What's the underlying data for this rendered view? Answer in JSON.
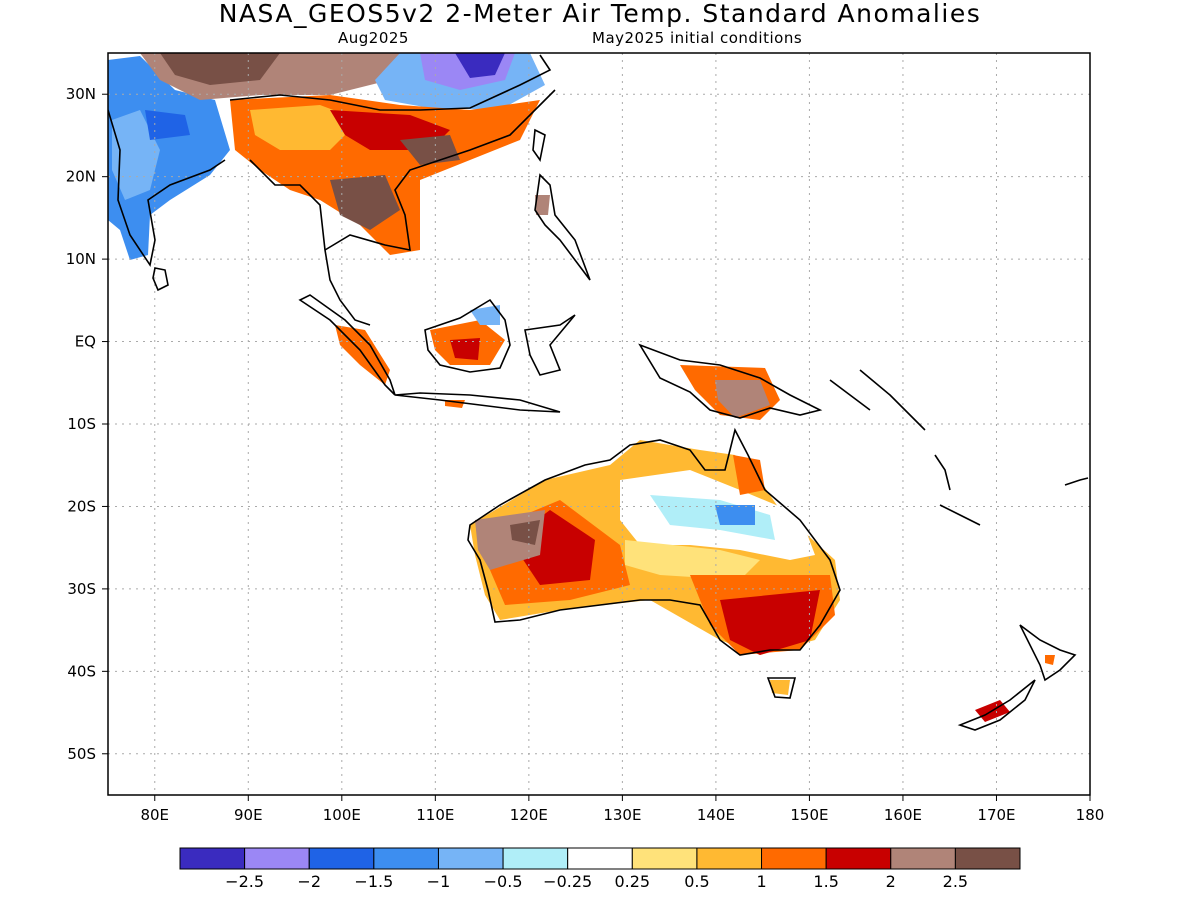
{
  "header": {
    "title": "NASA_GEOS5v2 2-Meter Air Temp. Standard Anomalies",
    "valid_month": "Aug2025",
    "init_conditions": "May2025 initial conditions"
  },
  "axes": {
    "lat_ticks": [
      {
        "label": "30N",
        "lat": 30
      },
      {
        "label": "20N",
        "lat": 20
      },
      {
        "label": "10N",
        "lat": 10
      },
      {
        "label": "EQ",
        "lat": 0
      },
      {
        "label": "10S",
        "lat": -10
      },
      {
        "label": "20S",
        "lat": -20
      },
      {
        "label": "30S",
        "lat": -30
      },
      {
        "label": "40S",
        "lat": -40
      },
      {
        "label": "50S",
        "lat": -50
      }
    ],
    "lon_ticks": [
      {
        "label": "80E",
        "lon": 80
      },
      {
        "label": "90E",
        "lon": 90
      },
      {
        "label": "100E",
        "lon": 100
      },
      {
        "label": "110E",
        "lon": 110
      },
      {
        "label": "120E",
        "lon": 120
      },
      {
        "label": "130E",
        "lon": 130
      },
      {
        "label": "140E",
        "lon": 140
      },
      {
        "label": "150E",
        "lon": 150
      },
      {
        "label": "160E",
        "lon": 160
      },
      {
        "label": "170E",
        "lon": 170
      },
      {
        "label": "180",
        "lon": 180
      }
    ],
    "lon_range": [
      75,
      180
    ],
    "lat_range": [
      -55,
      35
    ],
    "grid": true
  },
  "colorbar": {
    "colors": [
      "#3a2bbf",
      "#9b87f5",
      "#1f63e6",
      "#3d8ef0",
      "#76b4f6",
      "#b0eef8",
      "#ffffff",
      "#ffe27a",
      "#ffb932",
      "#ff6a00",
      "#c80000",
      "#b08478",
      "#785046"
    ],
    "labels": [
      "−2.5",
      "−2",
      "−1.5",
      "−1",
      "−0.5",
      "−0.25",
      "0.25",
      "0.5",
      "1",
      "1.5",
      "2",
      "2.5"
    ]
  }
}
